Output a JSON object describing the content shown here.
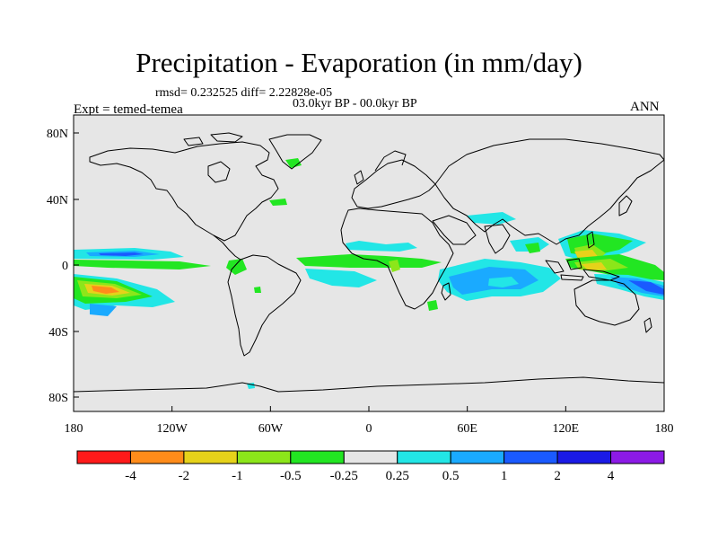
{
  "title": "Precipitation - Evaporation (in mm/day)",
  "stats": "rmsd= 0.232525 diff= 2.22828e-05",
  "period": "03.0kyr BP - 00.0kyr BP",
  "experiment": "Expt = temed-temea",
  "season": "ANN",
  "axes": {
    "lat_ticks": [
      "80N",
      "40N",
      "0",
      "40S",
      "80S"
    ],
    "lon_ticks": [
      "180",
      "120W",
      "60W",
      "0",
      "60E",
      "120E",
      "180"
    ]
  },
  "colorbar": {
    "colors": [
      "#ff1a1a",
      "#ff8c1a",
      "#e6d21a",
      "#8ce61a",
      "#22e622",
      "#e6e6e6",
      "#22e6e6",
      "#1aaaff",
      "#1a5aff",
      "#1a1ae6",
      "#8c1ae6"
    ],
    "labels": [
      "-4",
      "-2",
      "-1",
      "-0.5",
      "-0.25",
      "0.25",
      "0.5",
      "1",
      "2",
      "4"
    ]
  },
  "colors": {
    "ocean": "#e6e6e6",
    "coast": "#000000"
  }
}
